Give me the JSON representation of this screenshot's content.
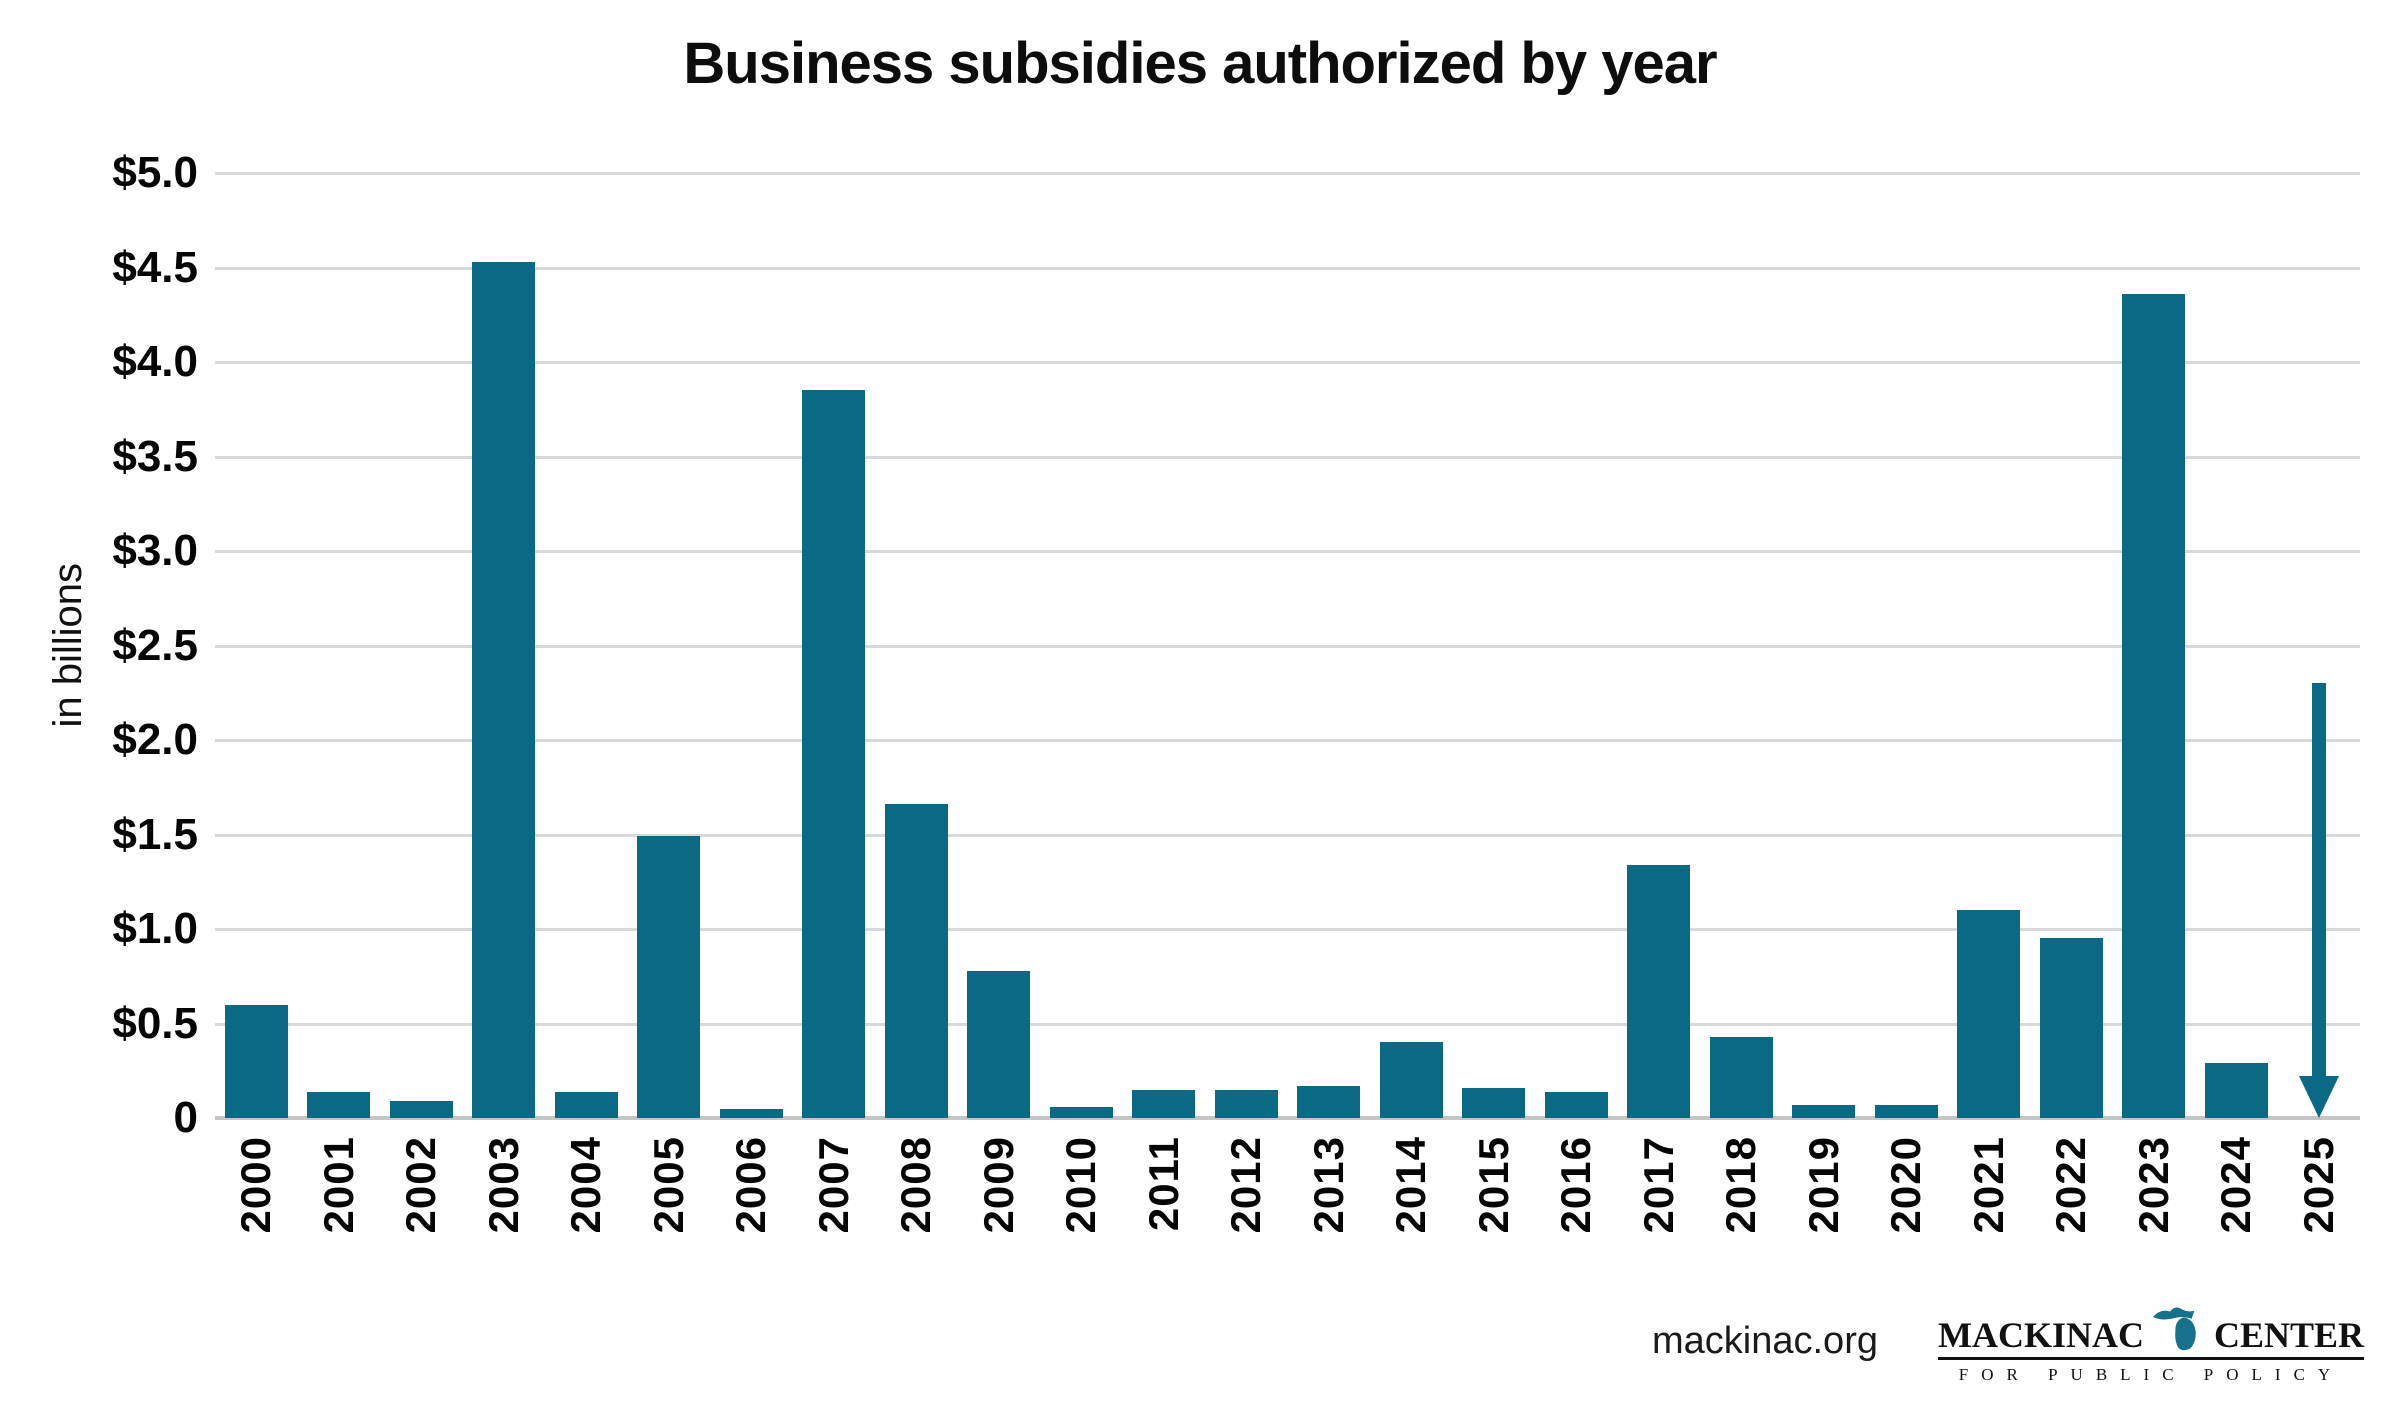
{
  "title": "Business subsidies authorized by year",
  "y_axis": {
    "label": "in billions",
    "ticks": [
      {
        "label": "$5.0",
        "value": 5.0
      },
      {
        "label": "$4.5",
        "value": 4.5
      },
      {
        "label": "$4.0",
        "value": 4.0
      },
      {
        "label": "$3.5",
        "value": 3.5
      },
      {
        "label": "$3.0",
        "value": 3.0
      },
      {
        "label": "$2.5",
        "value": 2.5
      },
      {
        "label": "$2.0",
        "value": 2.0
      },
      {
        "label": "$1.5",
        "value": 1.5
      },
      {
        "label": "$1.0",
        "value": 1.0
      },
      {
        "label": "$0.5",
        "value": 0.5
      },
      {
        "label": "0",
        "value": 0
      }
    ]
  },
  "colors": {
    "bar": "#0a6a85",
    "grid": "#d9d9d9",
    "axis": "#c5c5c5",
    "logo_teal": "#17718c"
  },
  "footer": {
    "website": "mackinac.org",
    "logo": {
      "name_left": "MACKINAC",
      "name_right": "CENTER",
      "tagline": "FOR PUBLIC POLICY"
    }
  },
  "chart_data": {
    "type": "bar",
    "title": "Business subsidies authorized by year",
    "xlabel": "",
    "ylabel": "in billions",
    "ylim": [
      0,
      5.0
    ],
    "ytick_step": 0.5,
    "grid": "horizontal",
    "legend": "none",
    "categories": [
      "2000",
      "2001",
      "2002",
      "2003",
      "2004",
      "2005",
      "2006",
      "2007",
      "2008",
      "2009",
      "2010",
      "2011",
      "2012",
      "2013",
      "2014",
      "2015",
      "2016",
      "2017",
      "2018",
      "2019",
      "2020",
      "2021",
      "2022",
      "2023",
      "2024",
      "2025"
    ],
    "values": [
      0.6,
      0.14,
      0.09,
      4.53,
      0.14,
      1.49,
      0.05,
      3.85,
      1.66,
      0.78,
      0.06,
      0.15,
      0.15,
      0.17,
      0.4,
      0.16,
      0.14,
      1.34,
      0.43,
      0.07,
      0.07,
      1.1,
      0.95,
      4.36,
      0.29,
      null
    ],
    "annotation": {
      "year": "2025",
      "type": "down-arrow",
      "from": 2.3,
      "to": 0
    }
  }
}
